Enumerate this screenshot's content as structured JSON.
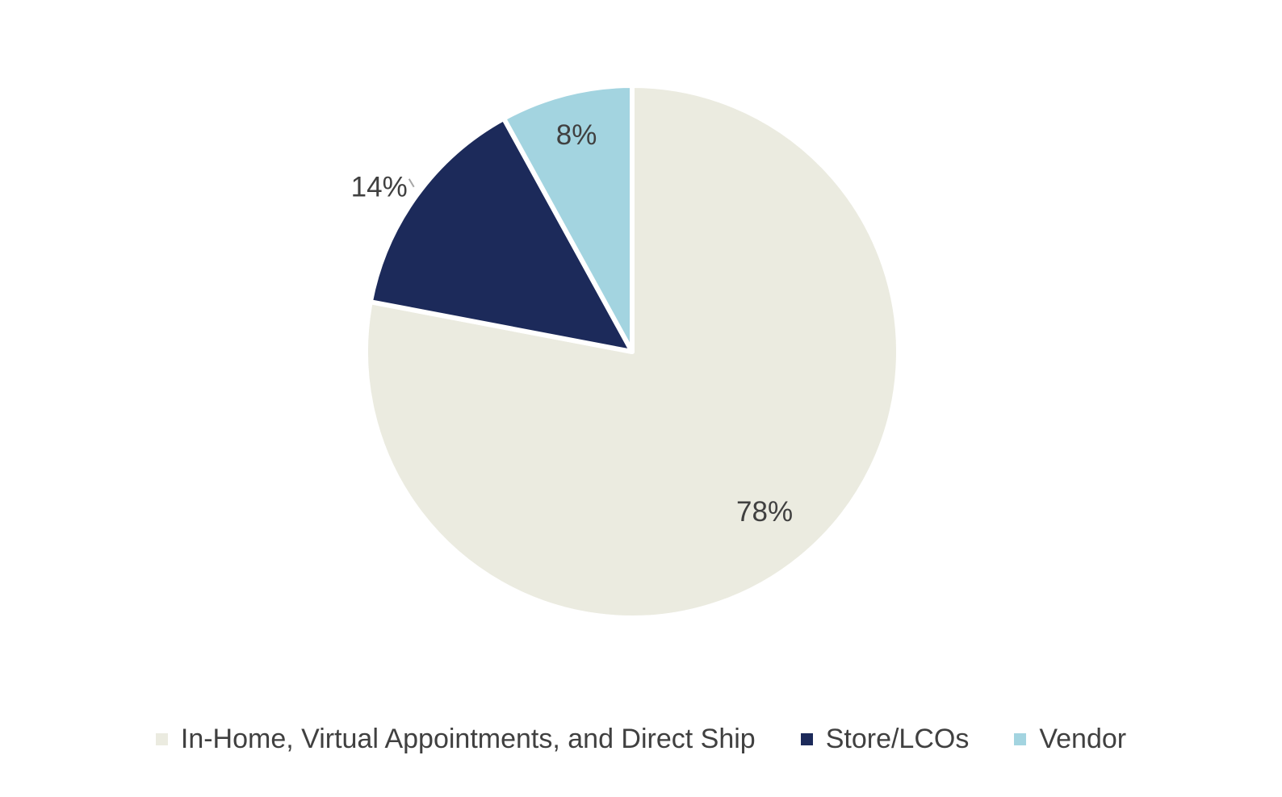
{
  "chart_data": {
    "type": "pie",
    "categories": [
      "In-Home, Virtual Appointments, and Direct Ship",
      "Store/LCOs",
      "Vendor"
    ],
    "values": [
      78,
      14,
      8
    ],
    "data_labels": [
      "78%",
      "14%",
      "8%"
    ],
    "colors": [
      "#EBEBE0",
      "#1C2A5A",
      "#A3D4E0"
    ],
    "start_angle_deg": 0,
    "direction": "clockwise",
    "legend_position": "bottom",
    "label_color": "#404040",
    "leader_line_color": "#A6A6A6"
  }
}
